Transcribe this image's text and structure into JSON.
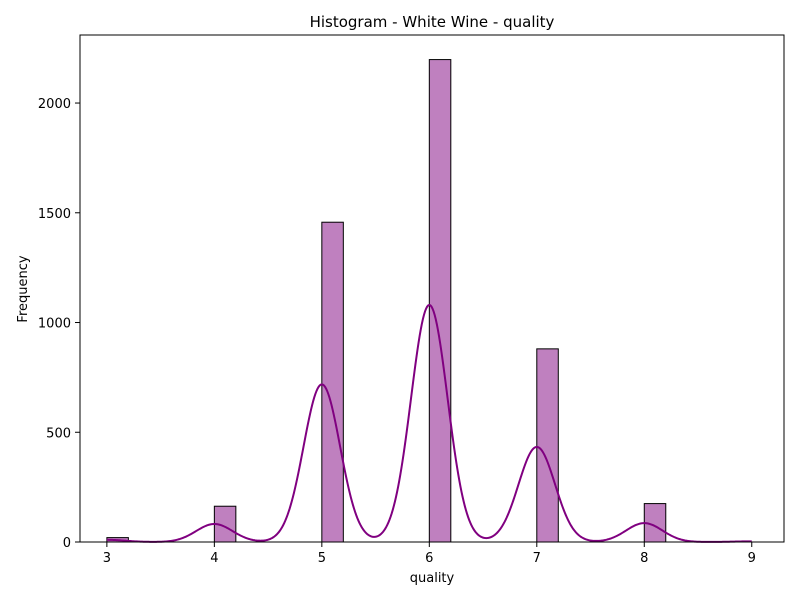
{
  "chart_data": {
    "type": "bar",
    "title": "Histogram - White Wine - quality",
    "xlabel": "quality",
    "ylabel": "Frequency",
    "xlim": [
      2.75,
      9.3
    ],
    "ylim": [
      0,
      2310
    ],
    "x_ticks": [
      3,
      4,
      5,
      6,
      7,
      8,
      9
    ],
    "y_ticks": [
      0,
      500,
      1000,
      1500,
      2000
    ],
    "bin_width": 0.2,
    "bars": [
      {
        "x_start": 3.0,
        "value": 20
      },
      {
        "x_start": 4.0,
        "value": 163
      },
      {
        "x_start": 5.0,
        "value": 1457
      },
      {
        "x_start": 6.0,
        "value": 2198
      },
      {
        "x_start": 7.0,
        "value": 880
      },
      {
        "x_start": 8.0,
        "value": 175
      }
    ],
    "kde": {
      "peaks": [
        {
          "x": 3.0,
          "height": 10
        },
        {
          "x": 4.0,
          "height": 82
        },
        {
          "x": 5.0,
          "height": 718
        },
        {
          "x": 6.0,
          "height": 1080
        },
        {
          "x": 7.0,
          "height": 433
        },
        {
          "x": 8.0,
          "height": 86
        },
        {
          "x": 9.0,
          "height": 3
        }
      ],
      "range": [
        3,
        9
      ]
    },
    "grid": false,
    "colors": {
      "bar_fill": "#bf80bf",
      "bar_edge": "#000000",
      "kde_line": "#800080"
    }
  }
}
